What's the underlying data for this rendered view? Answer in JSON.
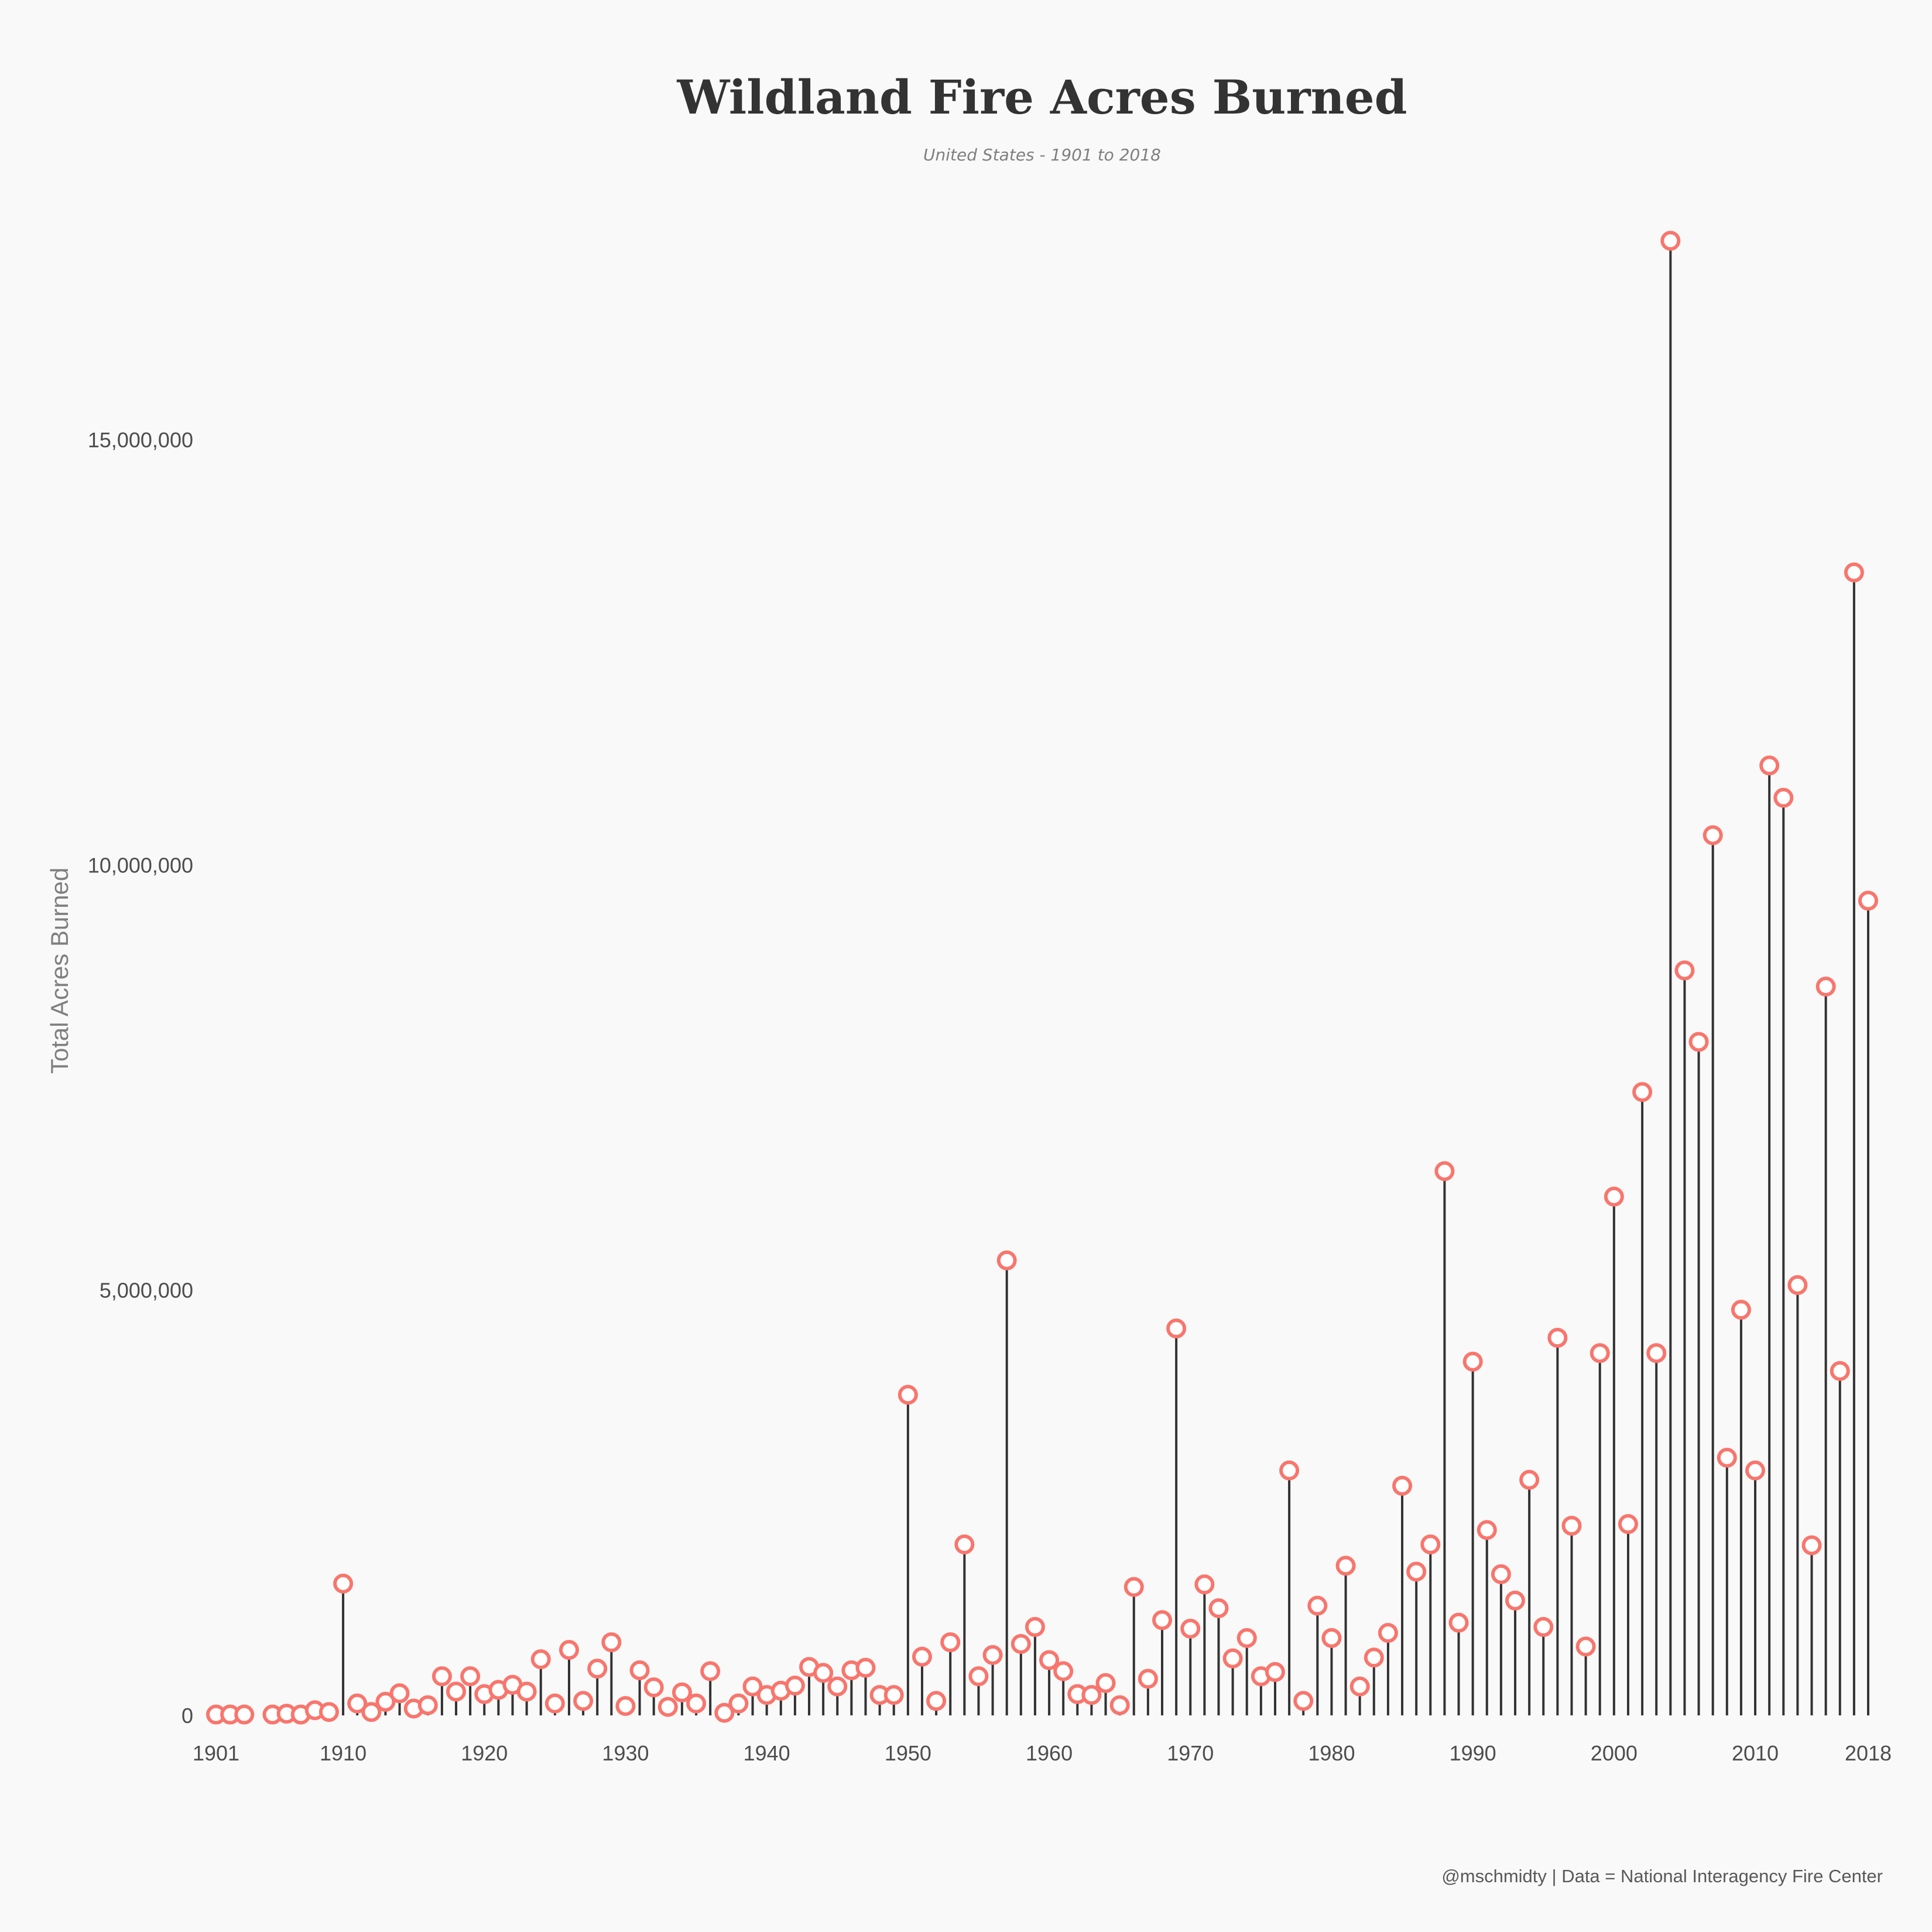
{
  "chart_data": {
    "type": "lollipop",
    "title": "Wildland Fire Acres Burned",
    "subtitle": "United States - 1901 to 2018",
    "ylabel": "Total Acres Burned",
    "caption": "@mschmidty | Data = National Interagency Fire Center",
    "ylim": [
      0,
      17500000
    ],
    "xlim": [
      1901,
      2018
    ],
    "x_ticks": [
      1901,
      1910,
      1920,
      1930,
      1940,
      1950,
      1960,
      1970,
      1980,
      1990,
      2000,
      2010,
      2018
    ],
    "y_ticks": [
      0,
      5000000,
      10000000,
      15000000
    ],
    "y_tick_labels": [
      "0",
      "5,000,000",
      "10,000,000",
      "15,000,000"
    ],
    "colors": {
      "point": "#f8766d",
      "stem": "#333333",
      "background": "#f9f9f9"
    },
    "years": [
      1901,
      1902,
      1903,
      1905,
      1906,
      1907,
      1908,
      1909,
      1910,
      1911,
      1912,
      1913,
      1914,
      1915,
      1916,
      1917,
      1918,
      1919,
      1920,
      1921,
      1922,
      1923,
      1924,
      1925,
      1926,
      1927,
      1928,
      1929,
      1930,
      1931,
      1932,
      1933,
      1934,
      1935,
      1936,
      1937,
      1938,
      1939,
      1940,
      1941,
      1942,
      1943,
      1944,
      1945,
      1946,
      1947,
      1948,
      1949,
      1950,
      1951,
      1952,
      1953,
      1954,
      1955,
      1956,
      1957,
      1958,
      1959,
      1960,
      1961,
      1962,
      1963,
      1964,
      1965,
      1966,
      1967,
      1968,
      1969,
      1970,
      1971,
      1972,
      1973,
      1974,
      1975,
      1976,
      1977,
      1978,
      1979,
      1980,
      1981,
      1982,
      1983,
      1984,
      1985,
      1986,
      1987,
      1988,
      1989,
      1990,
      1991,
      1992,
      1993,
      1994,
      1995,
      1996,
      1997,
      1998,
      1999,
      2000,
      2001,
      2002,
      2003,
      2004,
      2005,
      2006,
      2007,
      2008,
      2009,
      2010,
      2011,
      2012,
      2013,
      2014,
      2015,
      2016,
      2017,
      2018
    ],
    "values": [
      10000,
      10000,
      10000,
      10000,
      20000,
      10000,
      60000,
      40000,
      1550000,
      140000,
      40000,
      160000,
      260000,
      80000,
      120000,
      460000,
      280000,
      460000,
      250000,
      300000,
      360000,
      280000,
      660000,
      140000,
      770000,
      170000,
      550000,
      860000,
      110000,
      530000,
      330000,
      100000,
      270000,
      140000,
      520000,
      30000,
      140000,
      340000,
      240000,
      290000,
      350000,
      570000,
      500000,
      340000,
      530000,
      560000,
      240000,
      240000,
      3770000,
      690000,
      170000,
      860000,
      2010000,
      460000,
      710000,
      5350000,
      840000,
      1040000,
      650000,
      520000,
      250000,
      240000,
      380000,
      120000,
      1510000,
      430000,
      1120000,
      4550000,
      1020000,
      1540000,
      1260000,
      670000,
      910000,
      460000,
      510000,
      2880000,
      170000,
      1290000,
      910000,
      1760000,
      340000,
      680000,
      970000,
      2700000,
      1690000,
      2010000,
      6400000,
      1090000,
      4160000,
      2180000,
      1660000,
      1350000,
      2770000,
      1040000,
      4440000,
      2230000,
      810000,
      4260000,
      6100000,
      2250000,
      7330000,
      4260000,
      17340000,
      8760000,
      7920000,
      10350000,
      3030000,
      4770000,
      2880000,
      11170000,
      10790000,
      5060000,
      2000000,
      8570000,
      4050000,
      13440000,
      9580000
    ]
  }
}
